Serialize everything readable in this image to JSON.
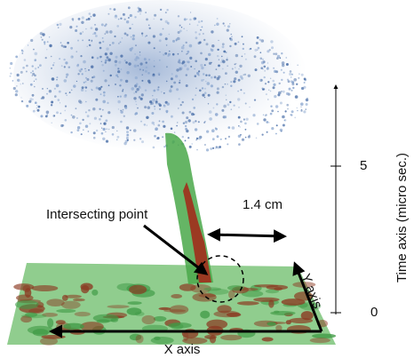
{
  "labels": {
    "intersecting_point": "Intersecting point",
    "width": "1.4 cm",
    "x_axis": "X axis",
    "y_axis": "Y axis",
    "time_axis": "Time axis (micro sec.)"
  },
  "time_ticks": [
    5,
    0
  ]
}
